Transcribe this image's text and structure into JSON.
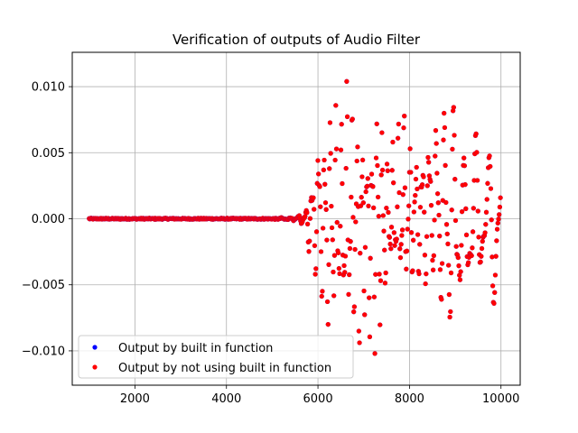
{
  "chart_data": {
    "type": "scatter",
    "title": "Verification of outputs of Audio Filter",
    "xlabel": "",
    "ylabel": "",
    "xlim": [
      630,
      10420
    ],
    "ylim": [
      -0.0126,
      0.0126
    ],
    "x_ticks": [
      {
        "value": 2000,
        "label": "2000"
      },
      {
        "value": 4000,
        "label": "4000"
      },
      {
        "value": 6000,
        "label": "6000"
      },
      {
        "value": 8000,
        "label": "8000"
      },
      {
        "value": 10000,
        "label": "10000"
      }
    ],
    "y_ticks": [
      {
        "value": 0.01,
        "label": "0.010"
      },
      {
        "value": 0.005,
        "label": "0.005"
      },
      {
        "value": 0.0,
        "label": "0.000"
      },
      {
        "value": -0.005,
        "label": "−0.005"
      },
      {
        "value": -0.01,
        "label": "−0.010"
      }
    ],
    "grid": true,
    "legend_position": "lower-left",
    "series": [
      {
        "name": "Output by built in function",
        "color": "#0000ff",
        "marker": "dot"
      },
      {
        "name": "Output by not using built in function",
        "color": "#ff0000",
        "marker": "dot"
      }
    ],
    "envelope": {
      "description_points": [
        [
          1000,
          0.0
        ],
        [
          4500,
          0.0
        ],
        [
          5000,
          0.0
        ],
        [
          5400,
          0.0001
        ],
        [
          5700,
          0.0004
        ],
        [
          5800,
          0.0015
        ],
        [
          5850,
          0.004
        ],
        [
          5900,
          0.003
        ],
        [
          6000,
          0.0075
        ],
        [
          6150,
          0.006
        ],
        [
          6250,
          0.0082
        ],
        [
          6400,
          0.009
        ],
        [
          6500,
          0.007
        ],
        [
          6650,
          0.0115
        ],
        [
          6800,
          0.008
        ],
        [
          6900,
          0.006
        ],
        [
          7000,
          0.0065
        ],
        [
          7150,
          0.0052
        ],
        [
          7300,
          0.0103
        ],
        [
          7500,
          0.0045
        ],
        [
          7700,
          0.0065
        ],
        [
          7850,
          0.0095
        ],
        [
          8000,
          0.0065
        ],
        [
          8200,
          0.0052
        ],
        [
          8450,
          0.0085
        ],
        [
          8600,
          0.009
        ],
        [
          8800,
          0.0091
        ],
        [
          9000,
          0.009
        ],
        [
          9100,
          0.0047
        ],
        [
          9300,
          0.0044
        ],
        [
          9450,
          0.0067
        ],
        [
          9650,
          0.0027
        ],
        [
          9800,
          0.0067
        ],
        [
          9900,
          0.0098
        ],
        [
          10000,
          0.0045
        ]
      ],
      "min_points": [
        [
          1000,
          0.0
        ],
        [
          4500,
          0.0
        ],
        [
          5000,
          0.0
        ],
        [
          5400,
          -0.0001
        ],
        [
          5700,
          -0.0005
        ],
        [
          5800,
          -0.0025
        ],
        [
          5900,
          -0.0048
        ],
        [
          6000,
          -0.004
        ],
        [
          6200,
          -0.0097
        ],
        [
          6300,
          -0.007
        ],
        [
          6400,
          -0.0082
        ],
        [
          6500,
          -0.0065
        ],
        [
          6600,
          -0.0098
        ],
        [
          6700,
          -0.008
        ],
        [
          6900,
          -0.0115
        ],
        [
          7000,
          -0.0075
        ],
        [
          7100,
          -0.0088
        ],
        [
          7250,
          -0.0106
        ],
        [
          7400,
          -0.0085
        ],
        [
          7600,
          -0.0035
        ],
        [
          7800,
          -0.0045
        ],
        [
          8000,
          -0.0048
        ],
        [
          8200,
          -0.0045
        ],
        [
          8350,
          -0.005
        ],
        [
          8500,
          -0.0038
        ],
        [
          8650,
          -0.006
        ],
        [
          8800,
          -0.0101
        ],
        [
          9000,
          -0.0094
        ],
        [
          9100,
          -0.0075
        ],
        [
          9300,
          -0.0068
        ],
        [
          9450,
          -0.0055
        ],
        [
          9600,
          -0.0047
        ],
        [
          9700,
          -0.0068
        ],
        [
          9800,
          -0.008
        ],
        [
          10000,
          -0.0074
        ]
      ]
    }
  }
}
